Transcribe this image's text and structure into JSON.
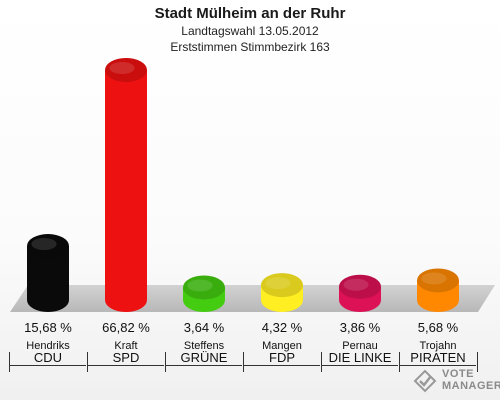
{
  "header": {
    "title": "Stadt Mülheim an der Ruhr",
    "subtitle1": "Landtagswahl 13.05.2012",
    "subtitle2": "Erststimmen Stimmbezirk 163"
  },
  "chart_data": {
    "type": "bar",
    "title": "Stadt Mülheim an der Ruhr",
    "categories": [
      "CDU",
      "SPD",
      "GRÜNE",
      "FDP",
      "DIE LINKE",
      "PIRATEN"
    ],
    "candidates": [
      "Hendriks",
      "Kraft",
      "Steffens",
      "Mangen",
      "Pernau",
      "Trojahn"
    ],
    "values": [
      15.68,
      66.82,
      3.64,
      4.32,
      3.86,
      5.68
    ],
    "value_labels": [
      "15,68 %",
      "66,82 %",
      "3,64 %",
      "4,32 %",
      "3,86 %",
      "5,68 %"
    ],
    "colors": [
      "#0a0a0a",
      "#ee1111",
      "#44cc11",
      "#ffee22",
      "#dd1155",
      "#ff8800"
    ],
    "ylim": [
      0,
      66.82
    ],
    "grid": false
  },
  "watermark": {
    "line1": "VOTE",
    "line2": "MANAGER"
  }
}
